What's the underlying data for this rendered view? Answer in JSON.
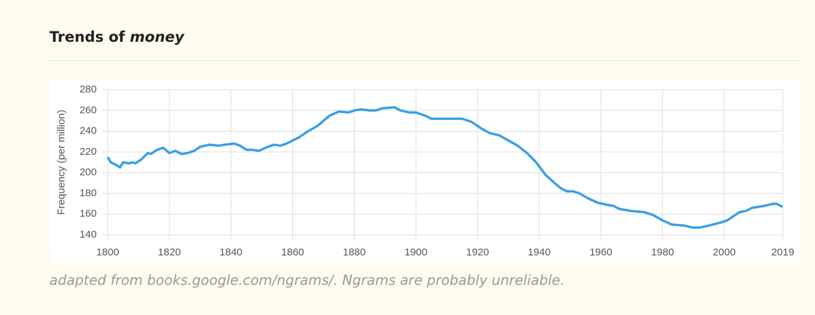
{
  "header": {
    "title": "Trends of",
    "word": "money"
  },
  "chart_data": {
    "type": "line",
    "y_label": "Frequency (per million)",
    "x": [
      1800,
      1801,
      1803,
      1804,
      1805,
      1807,
      1808,
      1809,
      1811,
      1813,
      1814,
      1816,
      1818,
      1820,
      1822,
      1824,
      1826,
      1828,
      1830,
      1833,
      1836,
      1838,
      1841,
      1843,
      1845,
      1847,
      1849,
      1852,
      1854,
      1856,
      1858,
      1860,
      1862,
      1865,
      1868,
      1870,
      1872,
      1875,
      1878,
      1880,
      1882,
      1885,
      1887,
      1889,
      1893,
      1895,
      1898,
      1900,
      1903,
      1905,
      1908,
      1912,
      1915,
      1918,
      1921,
      1924,
      1927,
      1930,
      1933,
      1936,
      1939,
      1942,
      1945,
      1947,
      1949,
      1951,
      1953,
      1956,
      1959,
      1962,
      1964,
      1966,
      1970,
      1974,
      1977,
      1980,
      1983,
      1987,
      1990,
      1992,
      1995,
      1999,
      2001,
      2003,
      2005,
      2007,
      2009,
      2013,
      2016,
      2017,
      2019
    ],
    "values": [
      215,
      210,
      207,
      205,
      210,
      209,
      210,
      209,
      213,
      219,
      218,
      222,
      224,
      219,
      221,
      218,
      219,
      221,
      225,
      227,
      226,
      227,
      228,
      226,
      222,
      222,
      221,
      225,
      227,
      226,
      228,
      231,
      234,
      240,
      245,
      250,
      255,
      259,
      258,
      260,
      261,
      260,
      260,
      262,
      263,
      260,
      258,
      258,
      255,
      252,
      252,
      252,
      252,
      249,
      243,
      238,
      236,
      231,
      226,
      219,
      210,
      198,
      190,
      185,
      182,
      182,
      180,
      175,
      171,
      169,
      168,
      165,
      163,
      162,
      159,
      154,
      150,
      149,
      147,
      147,
      149,
      152,
      154,
      158,
      162,
      163,
      166,
      168,
      170,
      170,
      167
    ],
    "color": "#3b9fe4",
    "xlim": [
      1800,
      2019
    ],
    "xticks": [
      1800,
      1820,
      1840,
      1860,
      1880,
      1900,
      1920,
      1940,
      1960,
      1980,
      2000,
      2019
    ],
    "ylim": [
      140,
      280
    ],
    "yticks": [
      140,
      160,
      180,
      200,
      220,
      240,
      260,
      280
    ],
    "grid": true
  },
  "footer": "adapted from books.google.com/ngrams/. Ngrams are probably unreliable."
}
